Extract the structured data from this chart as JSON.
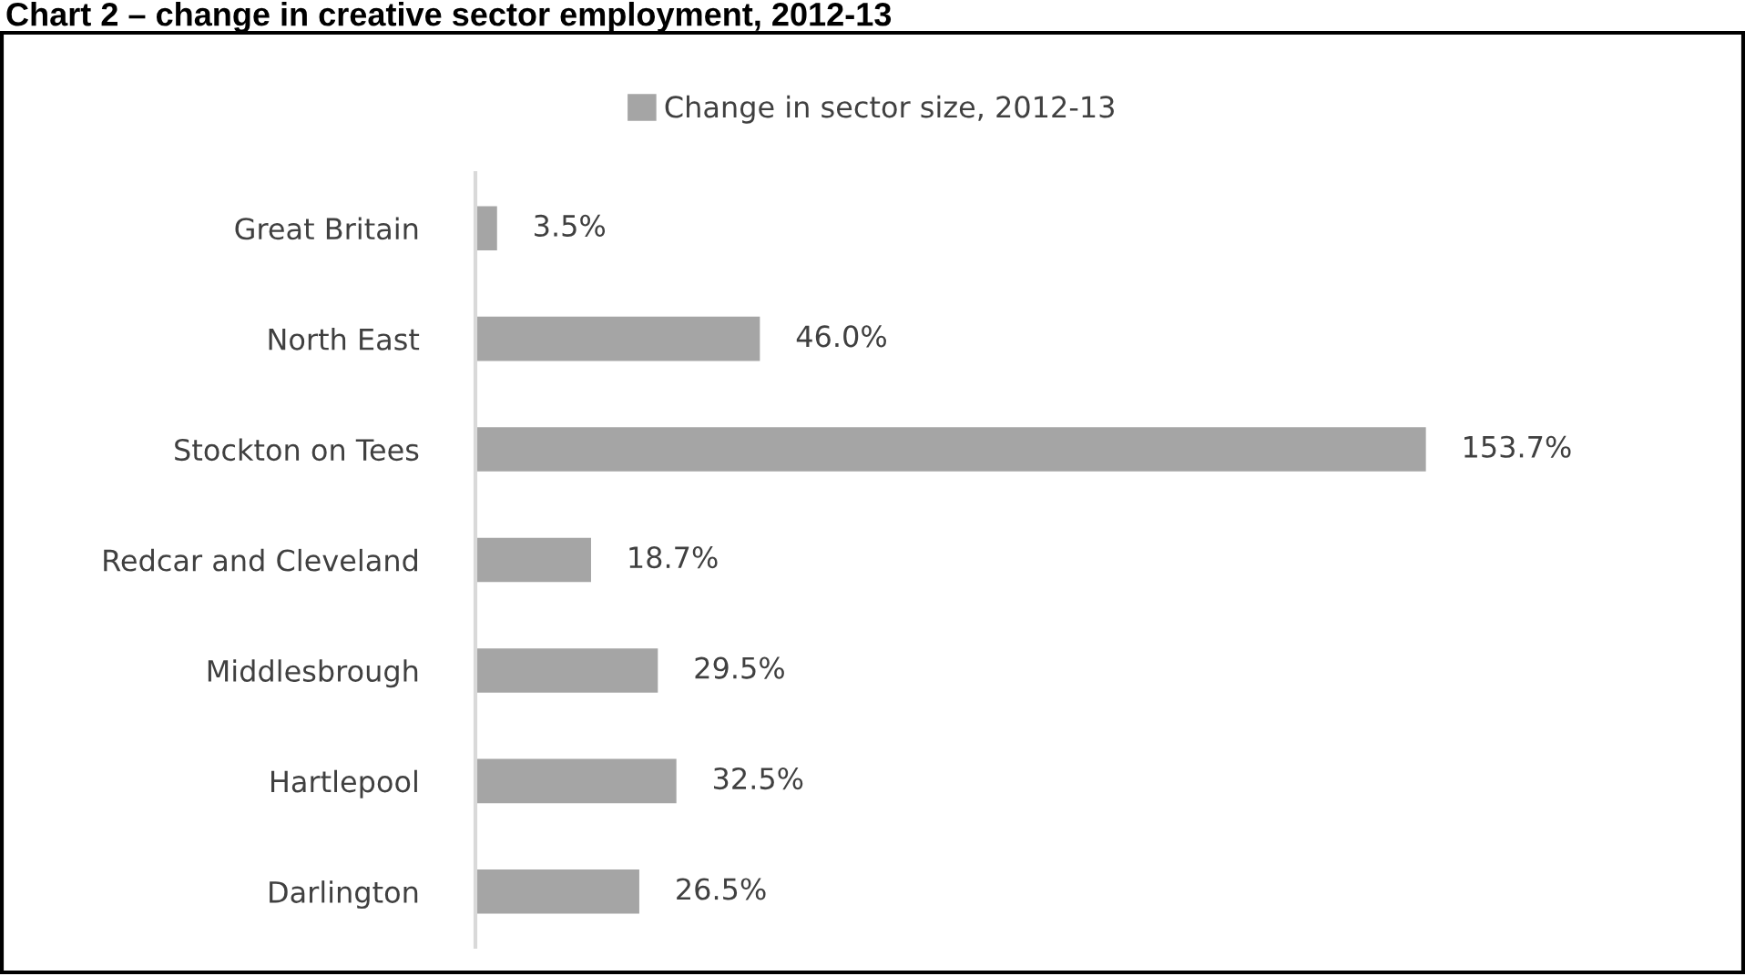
{
  "chart_data": {
    "type": "bar",
    "orientation": "horizontal",
    "title": "Chart 2 – change in creative sector employment, 2012-13",
    "categories": [
      "Great Britain",
      "North East",
      "Stockton on Tees",
      "Redcar and Cleveland",
      "Middlesbrough",
      "Hartlepool",
      "Darlington"
    ],
    "series": [
      {
        "name": "Change in sector size, 2012-13",
        "color": "#a5a5a5",
        "values": [
          3.5,
          46.0,
          153.7,
          18.7,
          29.5,
          32.5,
          26.5
        ],
        "value_labels": [
          "3.5%",
          "46.0%",
          "153.7%",
          "18.7%",
          "29.5%",
          "32.5%",
          "26.5%"
        ]
      }
    ],
    "legend": "top",
    "grid": false
  }
}
